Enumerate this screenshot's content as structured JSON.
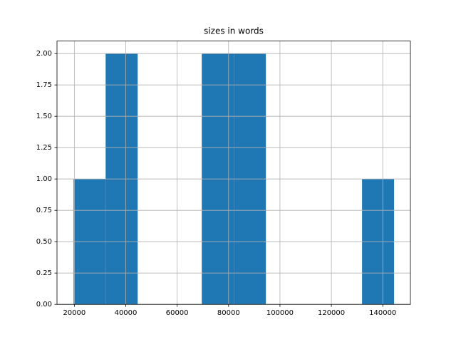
{
  "chart_data": {
    "type": "histogram",
    "title": "sizes in words",
    "bins": [
      19700,
      32170,
      44640,
      57110,
      69580,
      82050,
      94520,
      106990,
      119460,
      131930,
      144400
    ],
    "values": [
      1,
      2,
      0,
      0,
      2,
      2,
      0,
      0,
      0,
      1
    ],
    "color": "#1f77b4",
    "xlim": [
      13250,
      150750
    ],
    "xticks": [
      20000,
      40000,
      60000,
      80000,
      100000,
      120000,
      140000
    ],
    "ylim": [
      0,
      2.1
    ],
    "yticks": [
      {
        "value": 0,
        "label": "0.00"
      },
      {
        "value": 0.25,
        "label": "0.25"
      },
      {
        "value": 0.5,
        "label": "0.50"
      },
      {
        "value": 0.75,
        "label": "0.75"
      },
      {
        "value": 1,
        "label": "1.00"
      },
      {
        "value": 1.25,
        "label": "1.25"
      },
      {
        "value": 1.5,
        "label": "1.50"
      },
      {
        "value": 1.75,
        "label": "1.75"
      },
      {
        "value": 2,
        "label": "2.00"
      }
    ],
    "grid": true
  }
}
